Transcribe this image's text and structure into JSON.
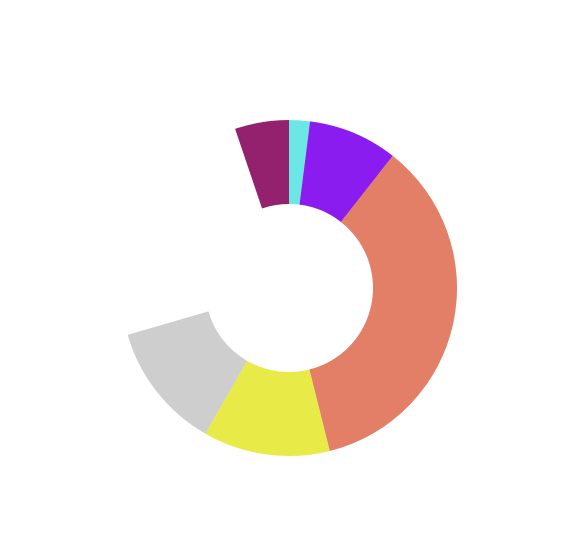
{
  "chart_data": {
    "type": "pie",
    "variant": "donut",
    "start_angle_deg": 0,
    "direction": "clockwise",
    "total_degrees": 360,
    "legend": "none",
    "slices": [
      {
        "value": 2.0,
        "color": "#6de6e6"
      },
      {
        "value": 8.6,
        "color": "#8a1cf0"
      },
      {
        "value": 35.5,
        "color": "#e27f66"
      },
      {
        "value": 12.2,
        "color": "#e8ea48"
      },
      {
        "value": 12.2,
        "color": "#cecece"
      },
      {
        "value": 24.3,
        "color": "transparent"
      },
      {
        "value": 5.2,
        "color": "#94216e"
      }
    ]
  }
}
